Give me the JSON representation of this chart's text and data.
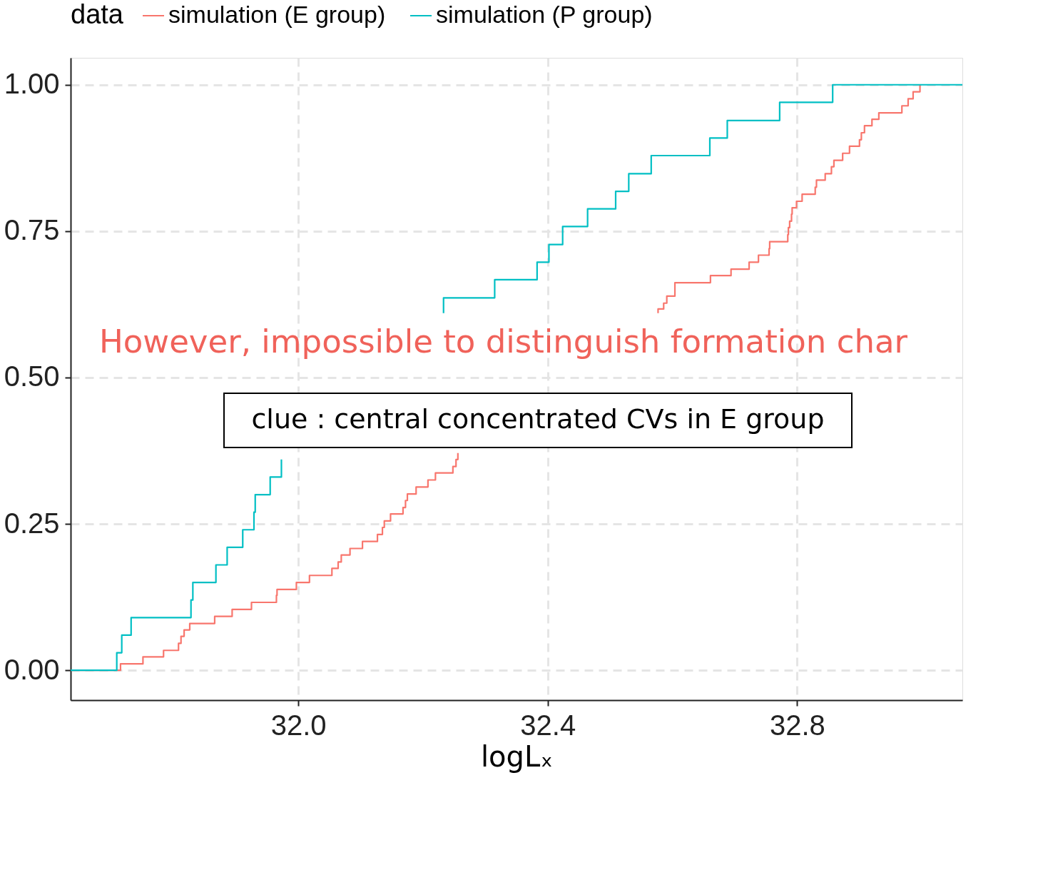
{
  "chart_data": {
    "type": "step",
    "xlabel": "logLₓ",
    "legend_title": "data",
    "legend": "top",
    "xlim": [
      31.635,
      33.065
    ],
    "ylim": [
      -0.051,
      1.046
    ],
    "xticks": [
      {
        "value": 32.0,
        "label": "32.0"
      },
      {
        "value": 32.4,
        "label": "32.4"
      },
      {
        "value": 32.8,
        "label": "32.8"
      }
    ],
    "yticks": [
      {
        "value": 0,
        "label": "0.00"
      },
      {
        "value": 0.25,
        "label": "0.25"
      },
      {
        "value": 0.5,
        "label": "0.50"
      },
      {
        "value": 0.75,
        "label": "0.75"
      },
      {
        "value": 1,
        "label": "1.00"
      }
    ],
    "grid": true,
    "line_style": "solid",
    "annotations": [
      "However, impossible to distinguish formation char",
      "clue : central concentrated CVs in E group"
    ],
    "series": [
      {
        "name": "simulation (E group)",
        "color": "#f8766d",
        "x": [
          31.635,
          31.715,
          31.751,
          31.784,
          31.808,
          31.812,
          31.817,
          31.826,
          31.866,
          31.894,
          31.925,
          31.965,
          31.966,
          31.997,
          32.018,
          32.054,
          32.064,
          32.069,
          32.083,
          32.103,
          32.127,
          32.135,
          32.138,
          32.148,
          32.168,
          32.172,
          32.175,
          32.189,
          32.208,
          32.22,
          32.248,
          32.253,
          32.256,
          32.277,
          32.577,
          32.577,
          32.586,
          32.591,
          32.604,
          32.661,
          32.694,
          32.723,
          32.738,
          32.755,
          32.756,
          32.785,
          32.786,
          32.788,
          32.791,
          32.792,
          32.799,
          32.808,
          32.829,
          32.831,
          32.845,
          32.855,
          32.859,
          32.873,
          32.884,
          32.9,
          32.903,
          32.908,
          32.92,
          32.931,
          32.968,
          32.978,
          32.986,
          32.997
        ],
        "values": [
          0,
          0.011,
          0.023,
          0.034,
          0.046,
          0.058,
          0.069,
          0.08,
          0.092,
          0.104,
          0.116,
          0.128,
          0.138,
          0.15,
          0.162,
          0.174,
          0.185,
          0.197,
          0.208,
          0.22,
          0.232,
          0.244,
          0.255,
          0.267,
          0.278,
          0.29,
          0.301,
          0.313,
          0.325,
          0.337,
          0.348,
          0.36,
          0.371,
          null,
          0.61,
          0.617,
          0.627,
          0.639,
          0.662,
          0.674,
          0.685,
          0.697,
          0.709,
          0.72,
          0.732,
          0.744,
          0.756,
          0.767,
          0.779,
          0.79,
          0.801,
          0.813,
          0.825,
          0.837,
          0.848,
          0.86,
          0.871,
          0.883,
          0.895,
          0.906,
          0.918,
          0.93,
          0.941,
          0.952,
          0.964,
          0.976,
          0.988,
          1.0
        ]
      },
      {
        "name": "simulation (P group)",
        "color": "#00bfc4",
        "x": [
          31.635,
          31.709,
          31.717,
          31.732,
          31.828,
          31.831,
          31.868,
          31.886,
          31.911,
          31.929,
          31.931,
          31.955,
          31.973,
          32.012,
          32.233,
          32.233,
          32.315,
          32.383,
          32.402,
          32.424,
          32.464,
          32.509,
          32.53,
          32.566,
          32.66,
          32.688,
          32.772,
          32.857,
          33.065
        ],
        "values": [
          0,
          0.03,
          0.06,
          0.09,
          0.12,
          0.15,
          0.18,
          0.21,
          0.24,
          0.27,
          0.3,
          0.33,
          0.36,
          null,
          0.61,
          0.636,
          0.667,
          0.697,
          0.727,
          0.758,
          0.788,
          0.818,
          0.848,
          0.879,
          0.909,
          0.939,
          0.97,
          1.0,
          1.0
        ]
      }
    ]
  }
}
